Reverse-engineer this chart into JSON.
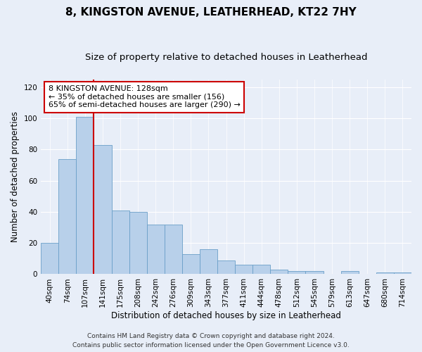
{
  "title1": "8, KINGSTON AVENUE, LEATHERHEAD, KT22 7HY",
  "title2": "Size of property relative to detached houses in Leatherhead",
  "xlabel": "Distribution of detached houses by size in Leatherhead",
  "ylabel": "Number of detached properties",
  "bar_values": [
    20,
    74,
    101,
    83,
    41,
    40,
    32,
    32,
    13,
    16,
    9,
    6,
    6,
    3,
    2,
    2,
    0,
    2,
    0,
    1,
    1
  ],
  "bar_labels": [
    "40sqm",
    "74sqm",
    "107sqm",
    "141sqm",
    "175sqm",
    "208sqm",
    "242sqm",
    "276sqm",
    "309sqm",
    "343sqm",
    "377sqm",
    "411sqm",
    "444sqm",
    "478sqm",
    "512sqm",
    "545sqm",
    "579sqm",
    "613sqm",
    "647sqm",
    "680sqm",
    "714sqm"
  ],
  "bar_color": "#b8d0ea",
  "bar_edge_color": "#6a9fc8",
  "vline_color": "#cc0000",
  "ylim": [
    0,
    125
  ],
  "yticks": [
    0,
    20,
    40,
    60,
    80,
    100,
    120
  ],
  "annotation_line1": "8 KINGSTON AVENUE: 128sqm",
  "annotation_line2": "← 35% of detached houses are smaller (156)",
  "annotation_line3": "65% of semi-detached houses are larger (290) →",
  "annotation_box_color": "white",
  "annotation_box_edge": "#cc0000",
  "footer1": "Contains HM Land Registry data © Crown copyright and database right 2024.",
  "footer2": "Contains public sector information licensed under the Open Government Licence v3.0.",
  "bg_color": "#e8eef8",
  "grid_color": "#ffffff",
  "title1_fontsize": 11,
  "title2_fontsize": 9.5,
  "axis_label_fontsize": 8.5,
  "tick_fontsize": 7.5,
  "annotation_fontsize": 8,
  "footer_fontsize": 6.5
}
